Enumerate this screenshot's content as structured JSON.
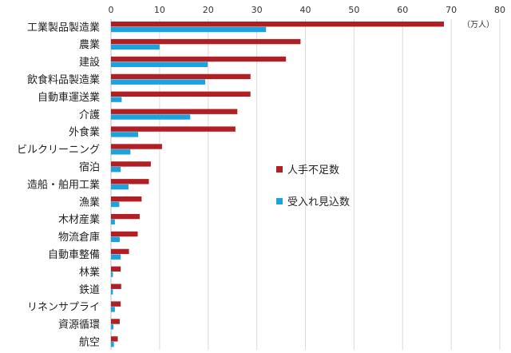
{
  "chart_data": {
    "type": "bar",
    "orientation": "horizontal",
    "categories": [
      "工業製品製造業",
      "農業",
      "建設",
      "飲食料品製造業",
      "自動車運送業",
      "介護",
      "外食業",
      "ビルクリーニング",
      "宿泊",
      "造船・舶用工業",
      "漁業",
      "木材産業",
      "物流倉庫",
      "自動車整備",
      "林業",
      "鉄道",
      "リネンサプライ",
      "資源循環",
      "航空"
    ],
    "series": [
      {
        "name": "人手不足数",
        "color": "#b01f24",
        "values": [
          68.5,
          39,
          36,
          28.7,
          28.7,
          26,
          25.6,
          10.5,
          8.2,
          7.8,
          6.3,
          5.9,
          5.5,
          3.7,
          2,
          2.1,
          2,
          1.8,
          1.4
        ]
      },
      {
        "name": "受入れ見込数",
        "color": "#1aa3dc",
        "values": [
          31.9,
          10,
          19.9,
          19.4,
          2.2,
          16.3,
          5.6,
          4,
          2,
          3.6,
          1.7,
          0.8,
          1.8,
          2,
          0.4,
          0.4,
          0.8,
          0.5,
          0.6
        ]
      }
    ],
    "xticks": [
      "0",
      "10",
      "20",
      "30",
      "40",
      "50",
      "60",
      "70",
      "80"
    ],
    "xlim": [
      0,
      80
    ],
    "unit_label": "（万人）",
    "legend_position": "right-middle",
    "grid": true
  }
}
